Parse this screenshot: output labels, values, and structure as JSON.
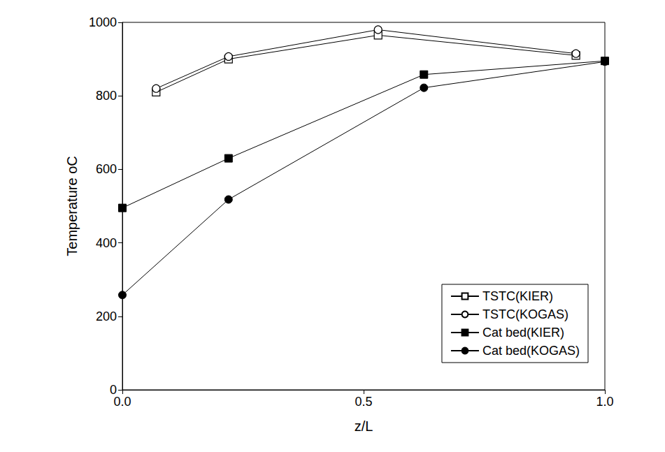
{
  "chart_data": {
    "type": "line",
    "x_label": "z/L",
    "y_label": "Temperature oC",
    "xlim": [
      0,
      1
    ],
    "xticks": [
      {
        "value": 0,
        "label": "0.0"
      },
      {
        "value": 0.5,
        "label": "0.5"
      },
      {
        "value": 1,
        "label": "1.0"
      }
    ],
    "ylim": [
      0,
      1000
    ],
    "yticks": [
      0,
      200,
      400,
      600,
      800,
      1000
    ],
    "grid": false,
    "legend": "lower right",
    "series": [
      {
        "name": "TSTC(KIER)",
        "color": "#000000",
        "marker": "open_square",
        "line_style": "solid",
        "x": [
          0.07,
          0.22,
          0.53,
          0.94
        ],
        "values": [
          810,
          900,
          965,
          910
        ]
      },
      {
        "name": "TSTC(KOGAS)",
        "color": "#000000",
        "marker": "open_circle",
        "line_style": "solid",
        "x": [
          0.07,
          0.22,
          0.53,
          0.94
        ],
        "values": [
          820,
          907,
          980,
          915
        ]
      },
      {
        "name": "Cat bed(KIER)",
        "color": "#000000",
        "marker": "square",
        "line_style": "solid",
        "x": [
          0,
          0.22,
          0.625,
          1.0
        ],
        "values": [
          495,
          630,
          858,
          895
        ]
      },
      {
        "name": "Cat bed(KOGAS)",
        "color": "#000000",
        "marker": "circle",
        "line_style": "solid",
        "x": [
          0,
          0.22,
          0.625,
          1.0
        ],
        "values": [
          258,
          518,
          822,
          893
        ]
      }
    ]
  }
}
